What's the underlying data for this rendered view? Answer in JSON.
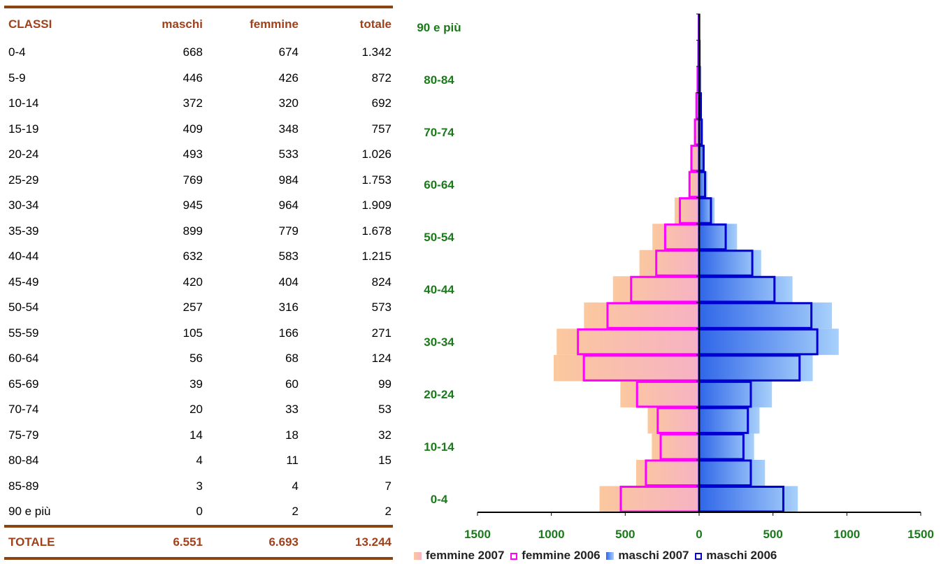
{
  "table": {
    "headers": {
      "classi": "CLASSI",
      "maschi": "maschi",
      "femmine": "femmine",
      "totale": "totale"
    },
    "rows": [
      {
        "classe": "0-4",
        "maschi": "668",
        "femmine": "674",
        "totale": "1.342"
      },
      {
        "classe": "5-9",
        "maschi": "446",
        "femmine": "426",
        "totale": "872"
      },
      {
        "classe": "10-14",
        "maschi": "372",
        "femmine": "320",
        "totale": "692"
      },
      {
        "classe": "15-19",
        "maschi": "409",
        "femmine": "348",
        "totale": "757"
      },
      {
        "classe": "20-24",
        "maschi": "493",
        "femmine": "533",
        "totale": "1.026"
      },
      {
        "classe": "25-29",
        "maschi": "769",
        "femmine": "984",
        "totale": "1.753"
      },
      {
        "classe": "30-34",
        "maschi": "945",
        "femmine": "964",
        "totale": "1.909"
      },
      {
        "classe": "35-39",
        "maschi": "899",
        "femmine": "779",
        "totale": "1.678"
      },
      {
        "classe": "40-44",
        "maschi": "632",
        "femmine": "583",
        "totale": "1.215"
      },
      {
        "classe": "45-49",
        "maschi": "420",
        "femmine": "404",
        "totale": "824"
      },
      {
        "classe": "50-54",
        "maschi": "257",
        "femmine": "316",
        "totale": "573"
      },
      {
        "classe": "55-59",
        "maschi": "105",
        "femmine": "166",
        "totale": "271"
      },
      {
        "classe": "60-64",
        "maschi": "56",
        "femmine": "68",
        "totale": "124"
      },
      {
        "classe": "65-69",
        "maschi": "39",
        "femmine": "60",
        "totale": "99"
      },
      {
        "classe": "70-74",
        "maschi": "20",
        "femmine": "33",
        "totale": "53"
      },
      {
        "classe": "75-79",
        "maschi": "14",
        "femmine": "18",
        "totale": "32"
      },
      {
        "classe": "80-84",
        "maschi": "4",
        "femmine": "11",
        "totale": "15"
      },
      {
        "classe": "85-89",
        "maschi": "3",
        "femmine": "4",
        "totale": "7"
      },
      {
        "classe": "90 e più",
        "maschi": "0",
        "femmine": "2",
        "totale": "2"
      }
    ],
    "total": {
      "label": "TOTALE",
      "maschi": "6.551",
      "femmine": "6.693",
      "totale": "13.244"
    }
  },
  "chart_data": {
    "type": "bar",
    "orientation": "horizontal",
    "categories": [
      "0-4",
      "5-9",
      "10-14",
      "15-19",
      "20-24",
      "25-29",
      "30-34",
      "35-39",
      "40-44",
      "45-49",
      "50-54",
      "55-59",
      "60-64",
      "65-69",
      "70-74",
      "75-79",
      "80-84",
      "85-89",
      "90 e più"
    ],
    "category_labels_shown": [
      "0-4",
      "10-14",
      "20-24",
      "30-34",
      "40-44",
      "50-54",
      "60-64",
      "70-74",
      "80-84",
      "90 e più"
    ],
    "x_ticks": [
      "1500",
      "1000",
      "500",
      "0",
      "500",
      "1000",
      "1500"
    ],
    "xlim": [
      -1500,
      1500
    ],
    "series": [
      {
        "name": "femmine 2007",
        "side": "left",
        "style": "filled",
        "values": [
          674,
          426,
          320,
          348,
          533,
          984,
          964,
          779,
          583,
          404,
          316,
          166,
          68,
          60,
          33,
          18,
          11,
          4,
          2
        ]
      },
      {
        "name": "femmine 2006",
        "side": "left",
        "style": "outline",
        "values": [
          530,
          360,
          260,
          280,
          420,
          780,
          820,
          620,
          460,
          290,
          230,
          130,
          65,
          52,
          28,
          18,
          10,
          5,
          2
        ]
      },
      {
        "name": "maschi 2007",
        "side": "right",
        "style": "filled",
        "values": [
          668,
          446,
          372,
          409,
          493,
          769,
          945,
          899,
          632,
          420,
          257,
          105,
          56,
          39,
          20,
          14,
          4,
          3,
          0
        ]
      },
      {
        "name": "maschi 2006",
        "side": "right",
        "style": "outline",
        "values": [
          570,
          350,
          300,
          330,
          350,
          680,
          800,
          760,
          510,
          360,
          180,
          80,
          40,
          30,
          18,
          12,
          5,
          3,
          1
        ]
      }
    ],
    "legend_position": "bottom",
    "colors": {
      "femmine_fill_outer": "#fbc89e",
      "femmine_fill_inner": "#f6b2c4",
      "femmine_outline": "#ff00ff",
      "maschi_fill_inner": "#2f66e8",
      "maschi_fill_outer": "#a7d0fb",
      "maschi_outline": "#0000d0",
      "axis": "#000000",
      "category_label": "#1a7a1a",
      "tick_label": "#1a7a1a",
      "table_text_accent": "#a0411b",
      "table_rule": "#8b4513"
    }
  }
}
